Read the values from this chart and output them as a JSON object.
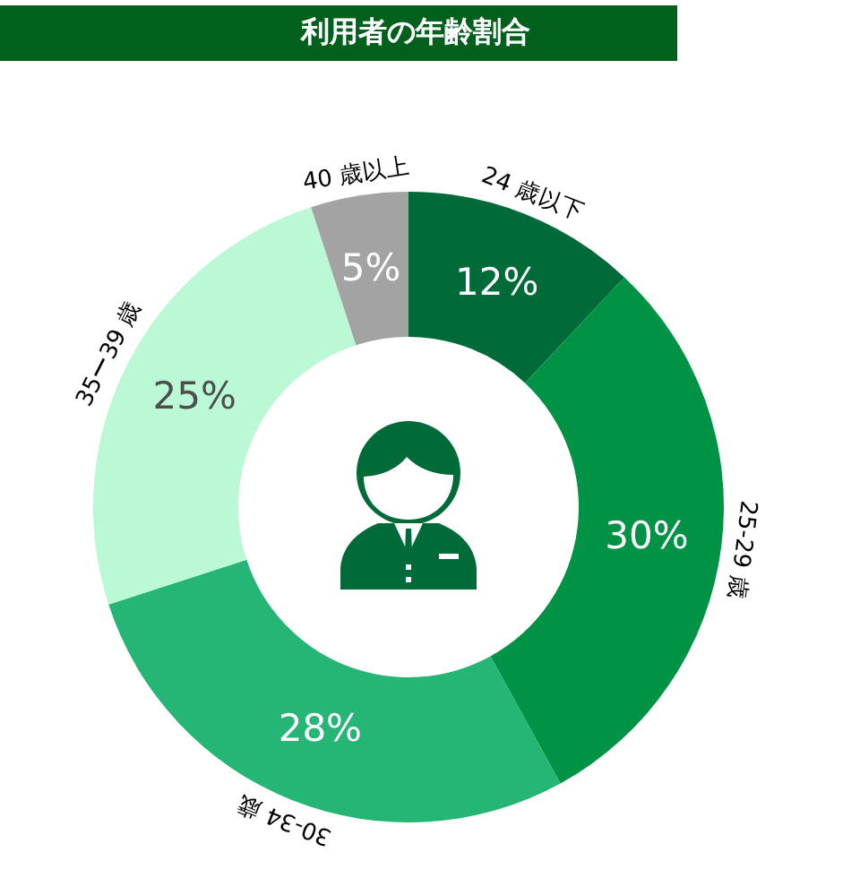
{
  "chart_data": {
    "type": "donut",
    "title": "利用者の年齢割合",
    "categories": [
      "24 歳以下",
      "25-29 歳",
      "30-34 歳",
      "35ー39 歳",
      "40 歳以上"
    ],
    "values": [
      12,
      30,
      28,
      25,
      5
    ],
    "value_labels": [
      "12%",
      "30%",
      "28%",
      "25%",
      "5%"
    ],
    "colors": [
      "#006b38",
      "#009245",
      "#25b574",
      "#bbf8d5",
      "#a3a3a3"
    ]
  }
}
